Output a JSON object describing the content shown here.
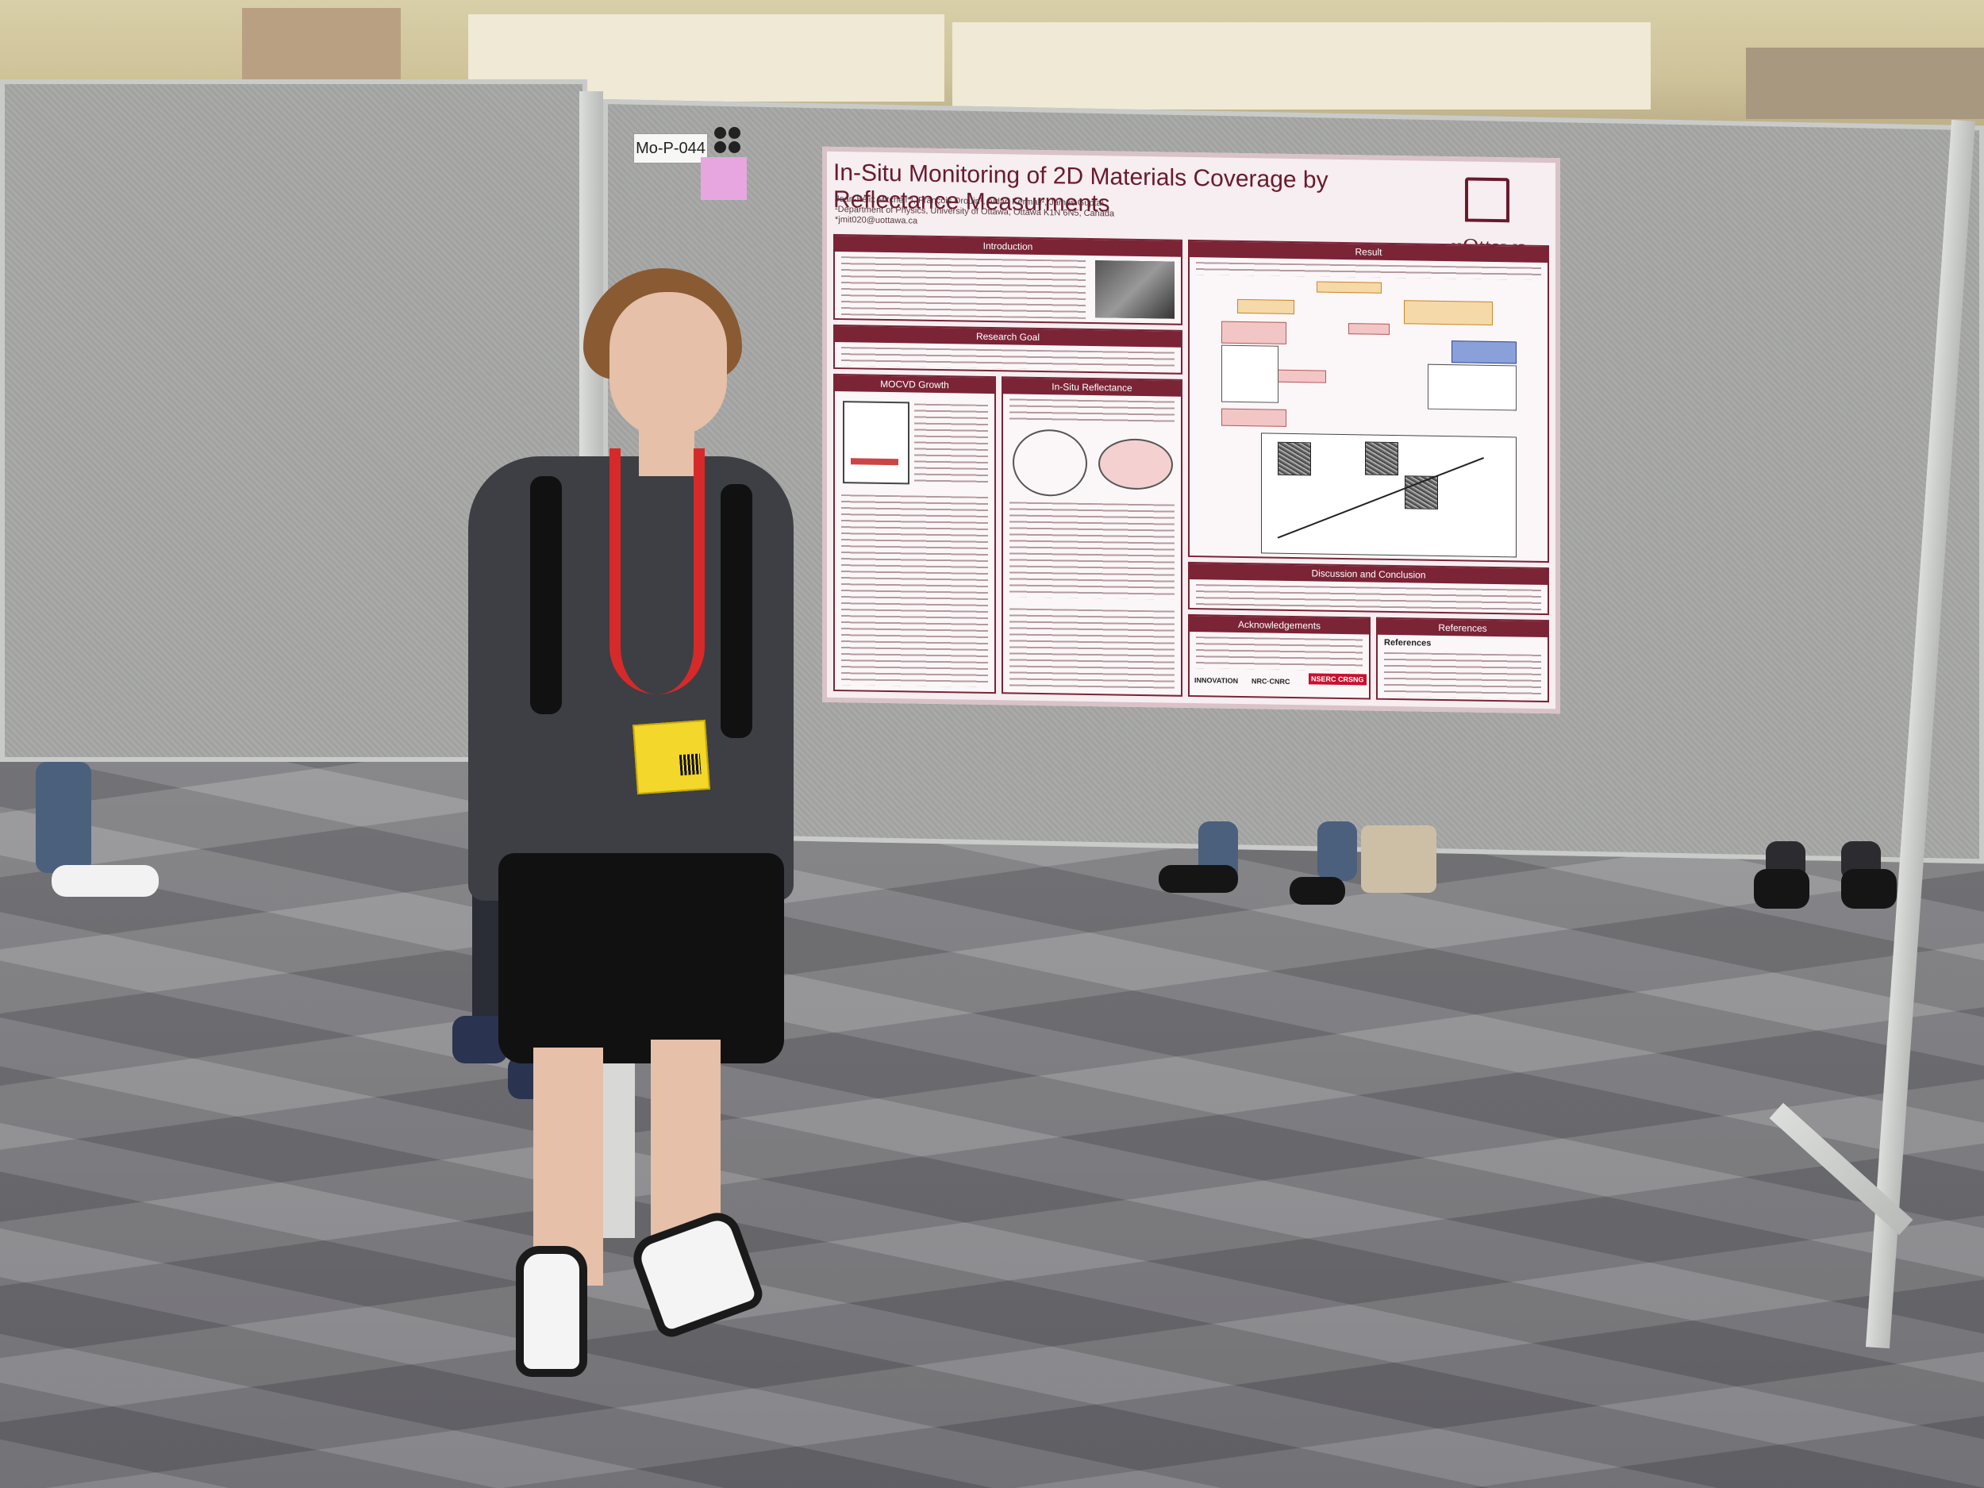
{
  "board_label": "Mo-P-044",
  "poster": {
    "title": "In-Situ Monitoring of 2D Materials Coverage by Reflectance Measurments",
    "authors": "Jean-Félix Mitchell*¹, François Drouin¹, Aidan Kermali¹, James Gupta¹",
    "affiliation": "¹Department of Physics, University of Ottawa, Ottawa K1N 6N5, Canada",
    "email": "*jmit020@uottawa.ca",
    "logo": "uOttawa",
    "sections": {
      "introduction": "Introduction",
      "research_goal": "Research Goal",
      "mocvd_growth": "MOCVD Growth",
      "in_situ_reflectance": "In-Situ Reflectance",
      "result": "Result",
      "discussion": "Discussion and Conclusion",
      "acknowledgements": "Acknowledgements",
      "references": "References"
    },
    "references_heading": "References",
    "sponsors": [
      "INNOVATION",
      "NRC·CNRC",
      "NSERC CRSNG"
    ]
  },
  "badge_text": "Conference badge",
  "colors": {
    "poster_accent": "#7a2436",
    "lanyard": "#d62a2a",
    "badge": "#f3d72a",
    "board": "#a7a8a6"
  }
}
